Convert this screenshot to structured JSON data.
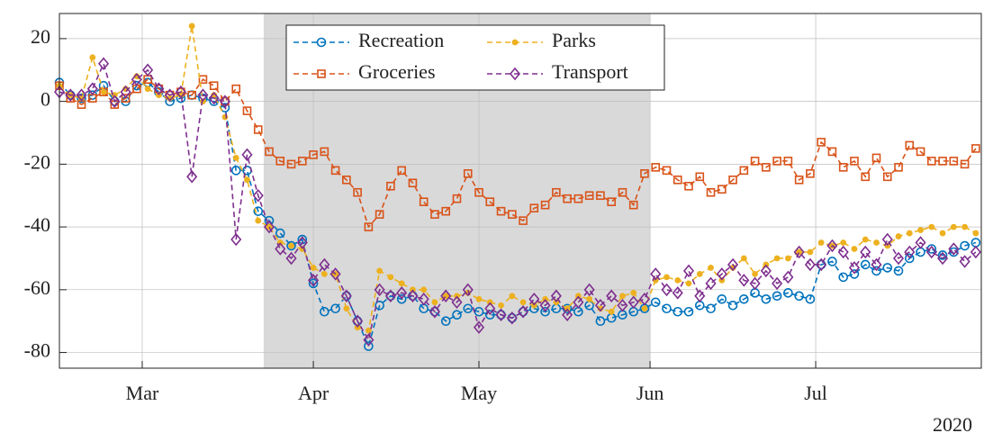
{
  "chart_data": {
    "type": "line",
    "xlabel": "2020",
    "xlim": [
      46,
      213
    ],
    "xticks": [
      {
        "value": 61,
        "label": "Mar"
      },
      {
        "value": 92,
        "label": "Apr"
      },
      {
        "value": 122,
        "label": "May"
      },
      {
        "value": 153,
        "label": "Jun"
      },
      {
        "value": 183,
        "label": "Jul"
      }
    ],
    "ylim": [
      -85,
      28
    ],
    "yticks": [
      -80,
      -60,
      -40,
      -20,
      0,
      20
    ],
    "grid": true,
    "legend": "upper center",
    "shaded_range": [
      83,
      153
    ],
    "x": [
      46,
      48,
      50,
      52,
      54,
      56,
      58,
      60,
      62,
      64,
      66,
      68,
      70,
      72,
      74,
      76,
      78,
      80,
      82,
      84,
      86,
      88,
      90,
      92,
      94,
      96,
      98,
      100,
      102,
      104,
      106,
      108,
      110,
      112,
      114,
      116,
      118,
      120,
      122,
      124,
      126,
      128,
      130,
      132,
      134,
      136,
      138,
      140,
      142,
      144,
      146,
      148,
      150,
      152,
      154,
      156,
      158,
      160,
      162,
      164,
      166,
      168,
      170,
      172,
      174,
      176,
      178,
      180,
      182,
      184,
      186,
      188,
      190,
      192,
      194,
      196,
      198,
      200,
      202,
      204,
      206,
      208,
      210,
      212
    ],
    "series": [
      {
        "name": "Recreation",
        "color": "#0072bd",
        "marker": "circle",
        "values": [
          6,
          2,
          1,
          2,
          5,
          0,
          0,
          5,
          6,
          3,
          0,
          1,
          2,
          1,
          0,
          -2,
          -22,
          -22,
          -35,
          -38,
          -42,
          -46,
          -44,
          -58,
          -67,
          -66,
          -62,
          -70,
          -78,
          -65,
          -62,
          -63,
          -62,
          -66,
          -67,
          -70,
          -68,
          -66,
          -67,
          -68,
          -68,
          -69,
          -67,
          -66,
          -67,
          -66,
          -66,
          -67,
          -65,
          -70,
          -69,
          -68,
          -67,
          -66,
          -64,
          -66,
          -67,
          -67,
          -65,
          -66,
          -63,
          -65,
          -63,
          -61,
          -63,
          -62,
          -61,
          -62,
          -63,
          -52,
          -51,
          -56,
          -55,
          -52,
          -54,
          -53,
          -54,
          -50,
          -48,
          -47,
          -49,
          -48,
          -46,
          -45
        ]
      },
      {
        "name": "Groceries",
        "color": "#d95319",
        "marker": "square",
        "values": [
          5,
          1,
          -1,
          1,
          3,
          -1,
          1,
          4,
          7,
          4,
          2,
          3,
          2,
          7,
          5,
          0,
          4,
          -3,
          -9,
          -16,
          -19,
          -20,
          -19,
          -17,
          -16,
          -22,
          -25,
          -29,
          -40,
          -36,
          -27,
          -22,
          -26,
          -32,
          -36,
          -35,
          -31,
          -23,
          -29,
          -32,
          -35,
          -36,
          -38,
          -34,
          -33,
          -29,
          -31,
          -31,
          -30,
          -30,
          -32,
          -29,
          -33,
          -23,
          -21,
          -22,
          -25,
          -27,
          -24,
          -29,
          -28,
          -25,
          -22,
          -19,
          -21,
          -19,
          -19,
          -25,
          -23,
          -13,
          -16,
          -21,
          -19,
          -24,
          -18,
          -24,
          -21,
          -14,
          -16,
          -19,
          -19,
          -19,
          -20,
          -15
        ]
      },
      {
        "name": "Parks",
        "color": "#edb120",
        "marker": "dot",
        "values": [
          5,
          2,
          1,
          14,
          3,
          2,
          4,
          8,
          4,
          2,
          1,
          2,
          24,
          0,
          2,
          -5,
          -18,
          -25,
          -38,
          -40,
          -45,
          -46,
          -47,
          -53,
          -55,
          -55,
          -66,
          -72,
          -73,
          -54,
          -56,
          -58,
          -60,
          -60,
          -64,
          -62,
          -62,
          -61,
          -63,
          -64,
          -65,
          -62,
          -64,
          -65,
          -63,
          -64,
          -66,
          -62,
          -63,
          -66,
          -67,
          -62,
          -61,
          -66,
          -57,
          -56,
          -57,
          -58,
          -55,
          -53,
          -57,
          -53,
          -50,
          -55,
          -52,
          -50,
          -50,
          -48,
          -48,
          -45,
          -46,
          -45,
          -47,
          -44,
          -45,
          -46,
          -43,
          -42,
          -41,
          -40,
          -42,
          -40,
          -40,
          -42
        ]
      },
      {
        "name": "Transport",
        "color": "#7e2f8e",
        "marker": "diamond",
        "values": [
          3,
          2,
          2,
          4,
          12,
          0,
          3,
          7,
          10,
          4,
          2,
          3,
          -24,
          2,
          1,
          0,
          -44,
          -17,
          -30,
          -40,
          -47,
          -50,
          -45,
          -57,
          -52,
          -55,
          -62,
          -70,
          -76,
          -60,
          -62,
          -61,
          -62,
          -63,
          -67,
          -62,
          -64,
          -60,
          -72,
          -66,
          -68,
          -69,
          -67,
          -63,
          -65,
          -62,
          -68,
          -64,
          -60,
          -65,
          -62,
          -65,
          -64,
          -63,
          -55,
          -60,
          -61,
          -54,
          -62,
          -58,
          -55,
          -52,
          -57,
          -58,
          -54,
          -58,
          -56,
          -48,
          -52,
          -52,
          -46,
          -48,
          -53,
          -48,
          -52,
          -44,
          -50,
          -48,
          -45,
          -48,
          -50,
          -47,
          -51,
          -48
        ]
      }
    ]
  }
}
